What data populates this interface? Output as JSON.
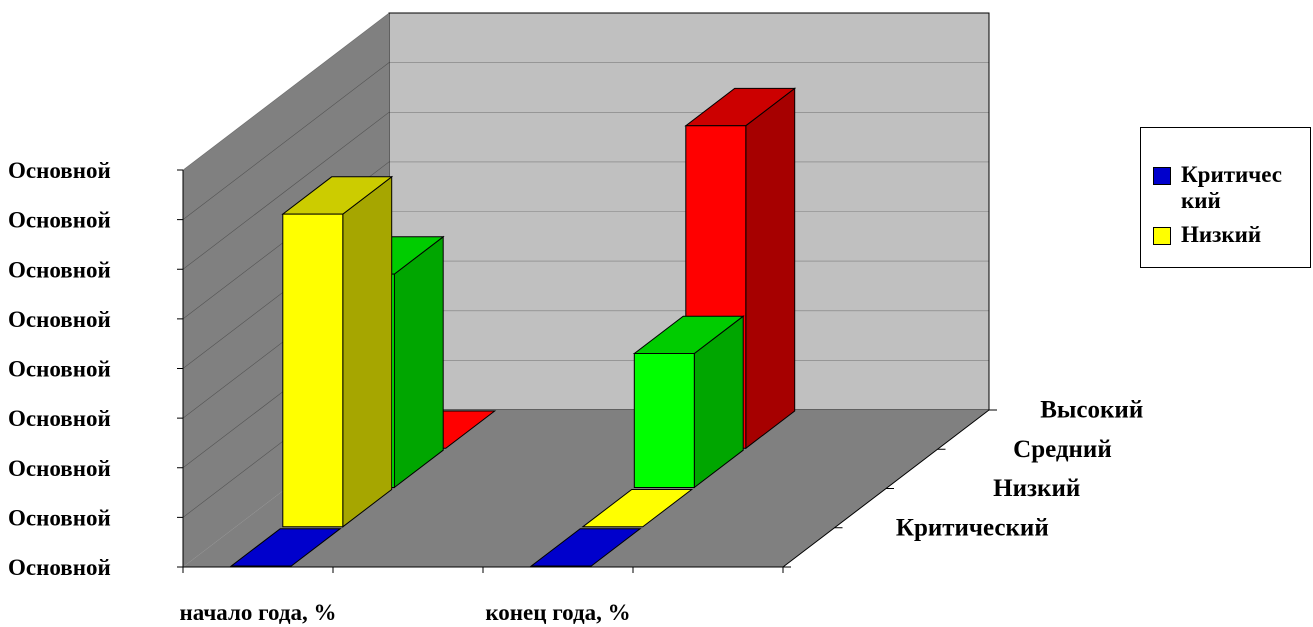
{
  "chart_data": {
    "type": "bar",
    "title": "",
    "categories": [
      "начало года, %",
      "конец года, %"
    ],
    "depth_categories": [
      "Критический",
      "Низкий",
      "Средний",
      "Высокий"
    ],
    "y_tick_labels": [
      "Основной",
      "Основной",
      "Основной",
      "Основной",
      "Основной",
      "Основной",
      "Основной",
      "Основной",
      "Основной"
    ],
    "ylim": [
      0,
      8
    ],
    "series": [
      {
        "name": "Критический",
        "values": [
          0,
          0
        ],
        "color": "#0000cc"
      },
      {
        "name": "Низкий",
        "values": [
          6.3,
          0
        ],
        "color": "#ffff00"
      },
      {
        "name": "Средний",
        "values": [
          4.3,
          2.7
        ],
        "color": "#00ff00"
      },
      {
        "name": "Высокий",
        "values": [
          0,
          6.5
        ],
        "color": "#ff0000"
      }
    ],
    "legend": {
      "position": "right",
      "entries": [
        "Критический",
        "Низкий"
      ]
    },
    "grid": true
  }
}
